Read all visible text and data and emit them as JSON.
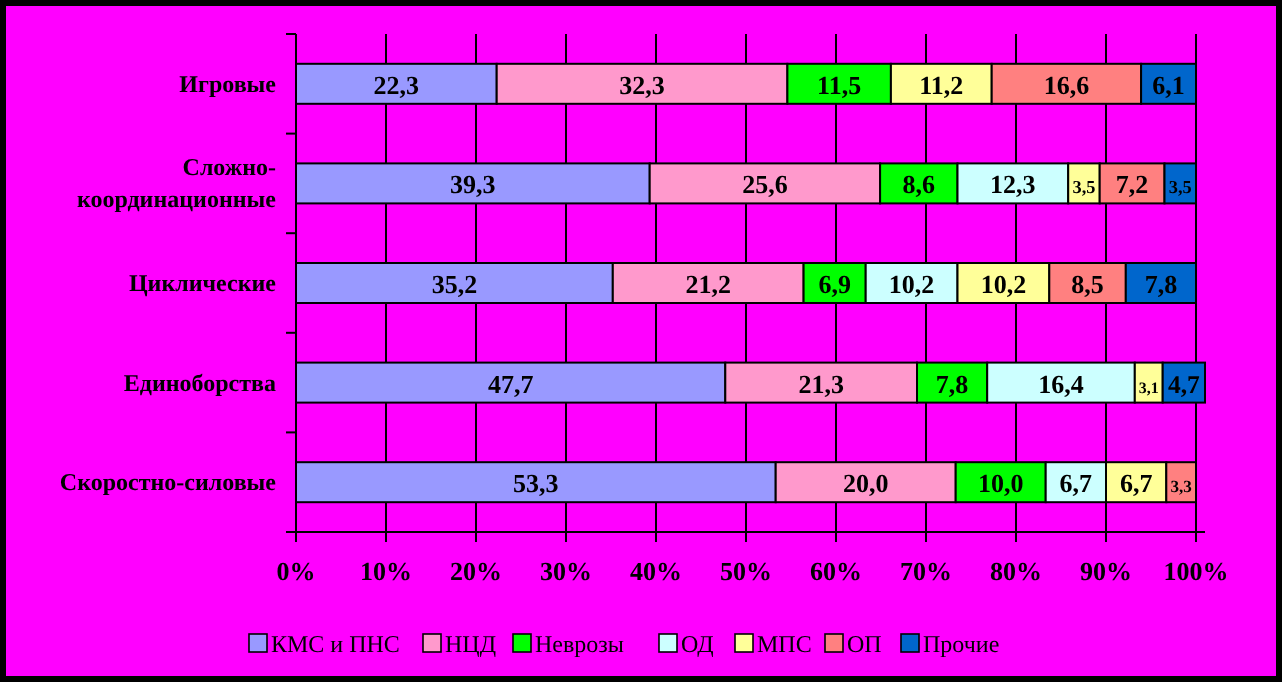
{
  "chart_data": {
    "type": "bar",
    "orientation": "horizontal",
    "stacked": true,
    "categories": [
      "Игровые",
      "Сложно-координационные",
      "Циклические",
      "Единоборства",
      "Скоростно-силовые"
    ],
    "series": [
      {
        "name": "КМС и ПНС",
        "color": "#9999ff",
        "values": [
          22.3,
          39.3,
          35.2,
          47.7,
          53.3
        ],
        "value_labels": [
          "22,3",
          "39,3",
          "35,2",
          "47,7",
          "53,3"
        ]
      },
      {
        "name": "НЦД",
        "color": "#ff99cc",
        "values": [
          32.3,
          25.6,
          21.2,
          21.3,
          20.0
        ],
        "value_labels": [
          "32,3",
          "25,6",
          "21,2",
          "21,3",
          "20,0"
        ]
      },
      {
        "name": "Неврозы",
        "color": "#00ff00",
        "values": [
          11.5,
          8.6,
          6.9,
          7.8,
          10.0
        ],
        "value_labels": [
          "11,5",
          "8,6",
          "6,9",
          "7,8",
          "10,0"
        ]
      },
      {
        "name": "ОД",
        "color": "#ccffff",
        "values": [
          null,
          12.3,
          10.2,
          16.4,
          6.7
        ],
        "value_labels": [
          null,
          "12,3",
          "10,2",
          "16,4",
          "6,7"
        ]
      },
      {
        "name": "МПС",
        "color": "#ffff99",
        "values": [
          11.2,
          3.5,
          10.2,
          3.1,
          6.7
        ],
        "value_labels": [
          "11,2",
          "3,5",
          "10,2",
          "3,1",
          "6,7"
        ]
      },
      {
        "name": "ОП",
        "color": "#ff8080",
        "values": [
          16.6,
          7.2,
          8.5,
          null,
          3.3
        ],
        "value_labels": [
          "16,6",
          "7,2",
          "8,5",
          null,
          "3,3"
        ]
      },
      {
        "name": "Прочие",
        "color": "#0066cc",
        "values": [
          6.1,
          3.5,
          7.8,
          4.7,
          null
        ],
        "value_labels": [
          "6,1",
          "3,5",
          "7,8",
          "4,7",
          null
        ]
      }
    ],
    "xlim": [
      0,
      101
    ],
    "xticks": [
      {
        "value": 0,
        "label": "0%"
      },
      {
        "value": 10,
        "label": "10%"
      },
      {
        "value": 20,
        "label": "20%"
      },
      {
        "value": 30,
        "label": "30%"
      },
      {
        "value": 40,
        "label": "40%"
      },
      {
        "value": 50,
        "label": "50%"
      },
      {
        "value": 60,
        "label": "60%"
      },
      {
        "value": 70,
        "label": "70%"
      },
      {
        "value": 80,
        "label": "80%"
      },
      {
        "value": 90,
        "label": "90%"
      },
      {
        "value": 100,
        "label": "100%"
      }
    ],
    "grid": "x",
    "legend": "bottom"
  }
}
